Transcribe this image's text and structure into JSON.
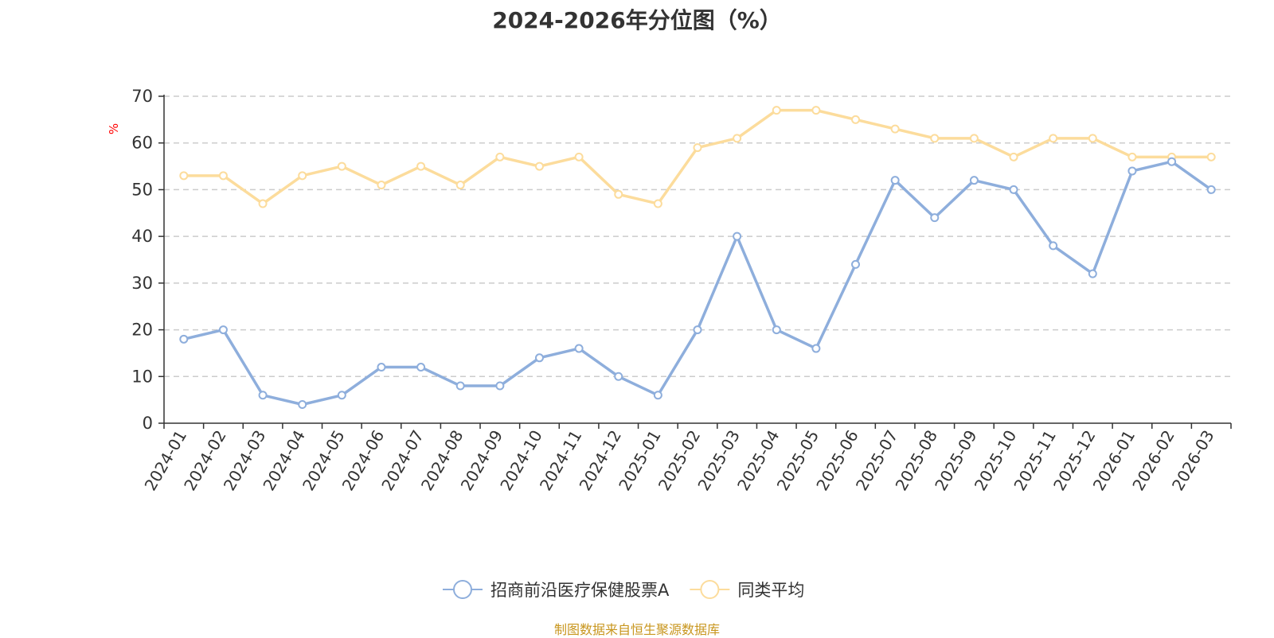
{
  "colors": {
    "series_primary": "#8EAEDC",
    "series_average": "#FCDC9C",
    "axis": "#333333",
    "grid": "#CCCCCC",
    "unit": "#FF0000",
    "source": "#C8961E"
  },
  "source_note": "制图数据来自恒生聚源数据库",
  "chart_data": {
    "type": "line",
    "title": "2024-2026年分位图（%）",
    "xlabel": "",
    "ylabel": "%",
    "ylim": [
      0,
      70
    ],
    "yticks": [
      0,
      10,
      20,
      30,
      40,
      50,
      60,
      70
    ],
    "grid": true,
    "legend_position": "bottom-center",
    "categories": [
      "2024-01",
      "2024-02",
      "2024-03",
      "2024-04",
      "2024-05",
      "2024-06",
      "2024-07",
      "2024-08",
      "2024-09",
      "2024-10",
      "2024-11",
      "2024-12",
      "2025-01",
      "2025-02",
      "2025-03",
      "2025-04",
      "2025-05",
      "2025-06",
      "2025-07",
      "2025-08",
      "2025-09",
      "2025-10",
      "2025-11",
      "2025-12",
      "2026-01",
      "2026-02",
      "2026-03"
    ],
    "series": [
      {
        "name": "招商前沿医疗保健股票A",
        "color_key": "series_primary",
        "values": [
          18,
          20,
          6,
          4,
          6,
          12,
          12,
          8,
          8,
          14,
          16,
          10,
          6,
          20,
          40,
          20,
          16,
          34,
          52,
          44,
          52,
          50,
          38,
          32,
          54,
          56,
          50
        ]
      },
      {
        "name": "同类平均",
        "color_key": "series_average",
        "values": [
          53,
          53,
          47,
          53,
          55,
          51,
          55,
          51,
          57,
          55,
          57,
          49,
          47,
          59,
          61,
          67,
          67,
          65,
          63,
          61,
          61,
          57,
          61,
          61,
          57,
          57,
          57
        ]
      }
    ]
  }
}
